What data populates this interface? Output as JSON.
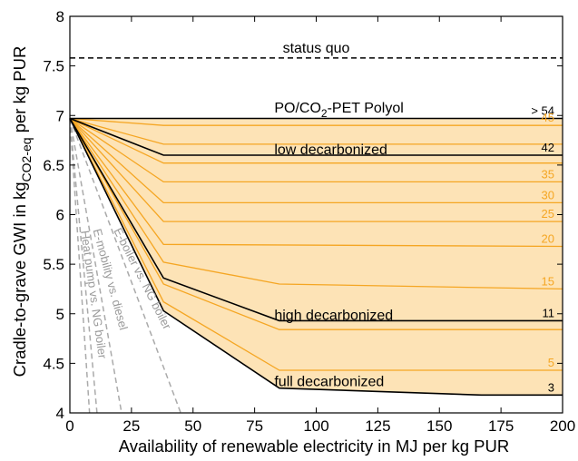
{
  "chart_data": {
    "type": "line",
    "xlabel": "Availability of renewable electricity in MJ per kg PUR",
    "ylabel": {
      "main": "Cradle-to-grave GWI in kg",
      "sub": "CO2-eq",
      "tail": " per kg PUR"
    },
    "xlim": [
      0,
      200
    ],
    "ylim": [
      4,
      8
    ],
    "x_ticks": [
      0,
      25,
      50,
      75,
      100,
      125,
      150,
      175,
      200
    ],
    "y_ticks": [
      4,
      4.5,
      5,
      5.5,
      6,
      6.5,
      7,
      7.5,
      8
    ],
    "grid": false,
    "fill_color": "#fde3b6",
    "colors": {
      "main": "#000000",
      "shares": "#f5a623",
      "status_quo": "#000000",
      "comparisons": "#aaaaaa"
    },
    "status_quo": {
      "y": 7.58,
      "label": "status quo"
    },
    "series": [
      {
        "name": "PO/CO2-PET Polyol",
        "style": "black",
        "x": [
          0,
          200
        ],
        "y": [
          6.97,
          6.97
        ]
      },
      {
        "label": "45",
        "style": "orange",
        "x": [
          0,
          38,
          200
        ],
        "y": [
          6.97,
          6.9,
          6.9
        ]
      },
      {
        "label": "",
        "style": "orange",
        "x": [
          0,
          38,
          200
        ],
        "y": [
          6.97,
          6.71,
          6.71
        ]
      },
      {
        "name": "low decarbonized",
        "label": "42",
        "style": "black",
        "x": [
          0,
          38,
          200
        ],
        "y": [
          6.97,
          6.6,
          6.6
        ]
      },
      {
        "label": "",
        "style": "orange",
        "x": [
          0,
          38,
          200
        ],
        "y": [
          6.97,
          6.52,
          6.52
        ]
      },
      {
        "label": "35",
        "style": "orange",
        "x": [
          0,
          38,
          200
        ],
        "y": [
          6.97,
          6.33,
          6.33
        ]
      },
      {
        "label": "30",
        "style": "orange",
        "x": [
          0,
          38,
          200
        ],
        "y": [
          6.97,
          6.12,
          6.12
        ]
      },
      {
        "label": "25",
        "style": "orange",
        "x": [
          0,
          38,
          200
        ],
        "y": [
          6.97,
          5.93,
          5.93
        ]
      },
      {
        "label": "20",
        "style": "orange",
        "x": [
          0,
          38,
          200
        ],
        "y": [
          6.97,
          5.7,
          5.68
        ]
      },
      {
        "label": "15",
        "style": "orange",
        "x": [
          0,
          38,
          85,
          200
        ],
        "y": [
          6.97,
          5.52,
          5.3,
          5.25
        ]
      },
      {
        "name": "high decarbonized",
        "label": "11",
        "style": "black",
        "x": [
          0,
          38,
          85,
          200
        ],
        "y": [
          6.97,
          5.36,
          4.93,
          4.93
        ]
      },
      {
        "label": "",
        "style": "orange",
        "x": [
          0,
          38,
          85,
          200
        ],
        "y": [
          6.97,
          5.3,
          4.84,
          4.84
        ]
      },
      {
        "label": "5",
        "style": "orange",
        "x": [
          0,
          38,
          85,
          200
        ],
        "y": [
          6.97,
          5.12,
          4.43,
          4.43
        ]
      },
      {
        "name": "full decarbonized",
        "label": "3",
        "style": "black",
        "x": [
          0,
          38,
          85,
          167,
          200
        ],
        "y": [
          6.97,
          5.03,
          4.25,
          4.18,
          4.18
        ]
      }
    ],
    "right_labels_extra": [
      {
        "label": "> 54",
        "y": 6.97
      }
    ],
    "comparisons": [
      {
        "name": "Heat pump vs. NG boiler",
        "x": [
          0,
          8
        ],
        "y": [
          6.97,
          4
        ]
      },
      {
        "name": "",
        "x": [
          0,
          11
        ],
        "y": [
          6.97,
          4
        ]
      },
      {
        "name": "E-mobility vs. diesel",
        "x": [
          0,
          21
        ],
        "y": [
          6.97,
          4
        ]
      },
      {
        "name": "E-boiler vs. NG boiler",
        "x": [
          0,
          45
        ],
        "y": [
          6.97,
          4
        ]
      }
    ],
    "annotations": [
      {
        "text_main": "PO/CO",
        "text_sub": "2",
        "text_tail": "-PET Polyol",
        "x": 83,
        "y": 7.03
      },
      {
        "text": "low decarbonized",
        "x": 83,
        "y": 6.61
      },
      {
        "text": "high decarbonized",
        "x": 83,
        "y": 4.94
      },
      {
        "text": "full decarbonized",
        "x": 83,
        "y": 4.27
      }
    ]
  }
}
